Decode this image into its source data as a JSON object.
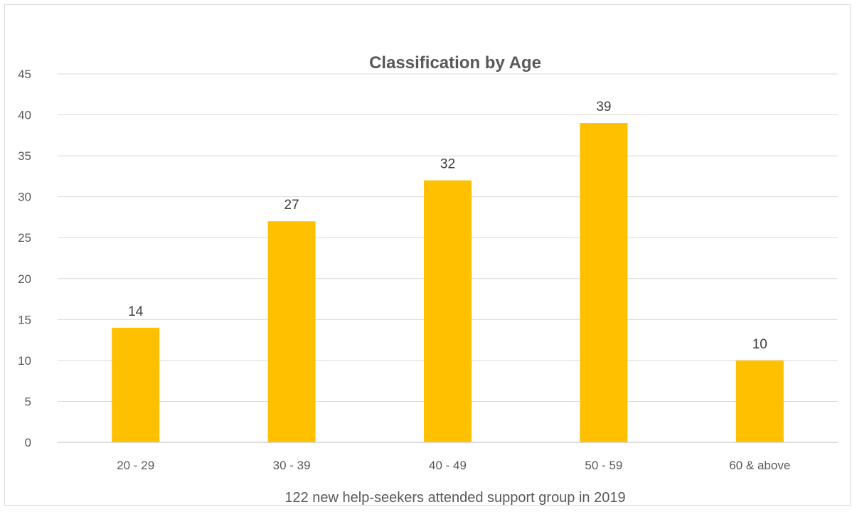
{
  "chart_data": {
    "type": "bar",
    "title": "Classification by Age",
    "xlabel": "122 new help-seekers attended support group in 2019",
    "ylabel": "",
    "categories": [
      "20 - 29",
      "30 - 39",
      "40 - 49",
      "50 - 59",
      "60 & above"
    ],
    "values": [
      14,
      27,
      32,
      39,
      10
    ],
    "ylim": [
      0,
      45
    ],
    "yticks": [
      0,
      5,
      10,
      15,
      20,
      25,
      30,
      35,
      40,
      45
    ],
    "grid": true,
    "legend": "none",
    "bar_color": "#FFC000"
  }
}
